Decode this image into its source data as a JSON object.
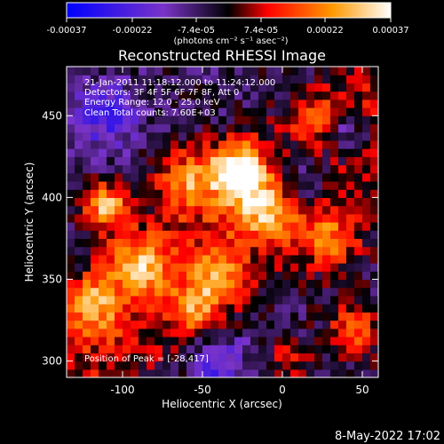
{
  "colorbar": {
    "tick_labels": [
      "-0.00037",
      "-0.00022",
      "-7.4e-05",
      "7.4e-05",
      "0.00022",
      "0.00037"
    ],
    "tick_values": [
      -0.00037,
      -0.00022,
      -7.4e-05,
      7.4e-05,
      0.00022,
      0.00037
    ],
    "range": [
      -0.00037,
      0.00037
    ],
    "units_label": "(photons cm⁻² s⁻¹ asec⁻²)"
  },
  "chart_data": {
    "type": "heatmap",
    "title": "Reconstructed RHESSI Image",
    "xlabel": "Heliocentric X (arcsec)",
    "ylabel": "Heliocentric Y (arcsec)",
    "xlim": [
      -135,
      60
    ],
    "ylim": [
      290,
      480
    ],
    "xticks": [
      -100,
      -50,
      0,
      50
    ],
    "xtick_labels": [
      "-100",
      "-50",
      "0",
      "50"
    ],
    "yticks": [
      300,
      350,
      400,
      450
    ],
    "ytick_labels": [
      "300",
      "350",
      "400",
      "450"
    ],
    "annotations": [
      "21-Jan-2011 11:18:12.000 to 11:24:12.000",
      "Detectors: 3F 4F 5F 6F 7F 8F, Att 0",
      "Energy Range: 12.0 - 25.0 keV",
      "Clean    Total counts: 7.60E+03"
    ],
    "peak_annotation": "Position of Peak = [-28,417]",
    "peak": {
      "x": -28,
      "y": 417
    },
    "colormap": [
      "#0000ff",
      "#7a33c8",
      "#000000",
      "#ff0000",
      "#ff9900",
      "#ffffff"
    ],
    "grid": false
  },
  "footer": {
    "date": "8-May-2022 17:02"
  }
}
